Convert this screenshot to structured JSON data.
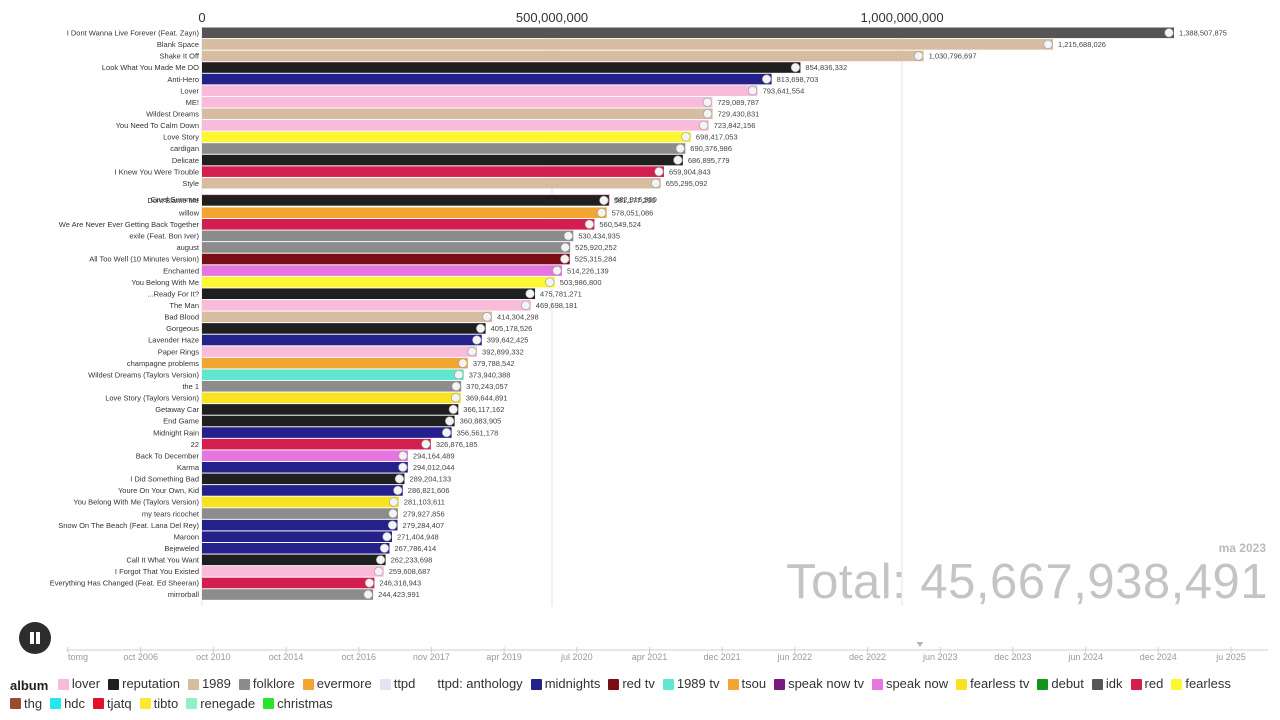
{
  "chart_data": {
    "type": "bar",
    "orientation": "horizontal",
    "xlim": [
      0,
      1388507875
    ],
    "x_ticks": [
      0,
      500000000,
      1000000000
    ],
    "x_tick_labels": [
      "0",
      "500,000,000",
      "1,000,000,000"
    ],
    "bars": [
      {
        "label": "I Dont Wanna Live Forever (Feat. Zayn)",
        "value": 1388507875,
        "value_label": "1,388,507,875",
        "album": "idk"
      },
      {
        "label": "Blank Space",
        "value": 1215688026,
        "value_label": "1,215,688,026",
        "album": "1989"
      },
      {
        "label": "Shake It Off",
        "value": 1030796697,
        "value_label": "1,030,796,697",
        "album": "1989"
      },
      {
        "label": "Look What You Made Me DO",
        "value": 854836332,
        "value_label": "854,836,332",
        "album": "reputation"
      },
      {
        "label": "Anti-Hero",
        "value": 813698703,
        "value_label": "813,698,703",
        "album": "midnights"
      },
      {
        "label": "Lover",
        "value": 793641554,
        "value_label": "793,641,554",
        "album": "lover"
      },
      {
        "label": "ME!",
        "value": 729089787,
        "value_label": "729,089,787",
        "album": "lover"
      },
      {
        "label": "Wildest Dreams",
        "value": 729430831,
        "value_label": "729,430,831",
        "album": "1989"
      },
      {
        "label": "You Need To Calm Down",
        "value": 723842156,
        "value_label": "723,842,156",
        "album": "lover"
      },
      {
        "label": "Love Story",
        "value": 698417053,
        "value_label": "698,417,053",
        "album": "fearless"
      },
      {
        "label": "cardigan",
        "value": 690376986,
        "value_label": "690,376,986",
        "album": "folklore"
      },
      {
        "label": "Delicate",
        "value": 686895779,
        "value_label": "686,895,779",
        "album": "reputation"
      },
      {
        "label": "I Knew You Were Trouble",
        "value": 659904843,
        "value_label": "659,904,843",
        "album": "red"
      },
      {
        "label": "Style",
        "value": 655295092,
        "value_label": "655,295,092",
        "album": "1989"
      },
      {
        "label": "Cruel Summer",
        "value": 582916950,
        "value_label": "582,916,950",
        "album": "lover"
      },
      {
        "label": "Dont Blame Me",
        "value": 581177290,
        "value_label": "581,177,290",
        "album": "reputation"
      },
      {
        "label": "willow",
        "value": 578051086,
        "value_label": "578,051,086",
        "album": "evermore"
      },
      {
        "label": "We Are Never Ever Getting Back Together",
        "value": 560549524,
        "value_label": "560,549,524",
        "album": "red"
      },
      {
        "label": "exile (Feat. Bon Iver)",
        "value": 530434935,
        "value_label": "530,434,935",
        "album": "folklore"
      },
      {
        "label": "august",
        "value": 525920252,
        "value_label": "525,920,252",
        "album": "folklore"
      },
      {
        "label": "All Too Well (10 Minutes Version)",
        "value": 525315284,
        "value_label": "525,315,284",
        "album": "red tv"
      },
      {
        "label": "Enchanted",
        "value": 514226139,
        "value_label": "514,226,139",
        "album": "speak now"
      },
      {
        "label": "You Belong With Me",
        "value": 503986800,
        "value_label": "503,986,800",
        "album": "fearless"
      },
      {
        "label": "...Ready For It?",
        "value": 475781271,
        "value_label": "475,781,271",
        "album": "reputation"
      },
      {
        "label": "The Man",
        "value": 469698181,
        "value_label": "469,698,181",
        "album": "lover"
      },
      {
        "label": "Bad Blood",
        "value": 414304298,
        "value_label": "414,304,298",
        "album": "1989"
      },
      {
        "label": "Gorgeous",
        "value": 405178526,
        "value_label": "405,178,526",
        "album": "reputation"
      },
      {
        "label": "Lavender Haze",
        "value": 399642425,
        "value_label": "399,642,425",
        "album": "midnights"
      },
      {
        "label": "Paper Rings",
        "value": 392899332,
        "value_label": "392,899,332",
        "album": "lover"
      },
      {
        "label": "champagne problems",
        "value": 379788542,
        "value_label": "379,788,542",
        "album": "evermore"
      },
      {
        "label": "Wildest Dreams (Taylors Version)",
        "value": 373940388,
        "value_label": "373,940,388",
        "album": "1989 tv"
      },
      {
        "label": "the 1",
        "value": 370243057,
        "value_label": "370,243,057",
        "album": "folklore"
      },
      {
        "label": "Love Story (Taylors Version)",
        "value": 369644891,
        "value_label": "369,644,891",
        "album": "fearless tv"
      },
      {
        "label": "Getaway Car",
        "value": 366117162,
        "value_label": "366,117,162",
        "album": "reputation"
      },
      {
        "label": "End Game",
        "value": 360883905,
        "value_label": "360,883,905",
        "album": "reputation"
      },
      {
        "label": "Midnight Rain",
        "value": 356561178,
        "value_label": "356,561,178",
        "album": "midnights"
      },
      {
        "label": "22",
        "value": 326876185,
        "value_label": "326,876,185",
        "album": "red"
      },
      {
        "label": "Back To December",
        "value": 294164489,
        "value_label": "294,164,489",
        "album": "speak now"
      },
      {
        "label": "Karma",
        "value": 294012044,
        "value_label": "294,012,044",
        "album": "midnights"
      },
      {
        "label": "I Did Something Bad",
        "value": 289204133,
        "value_label": "289,204,133",
        "album": "reputation"
      },
      {
        "label": "Youre On Your Own, Kid",
        "value": 286821606,
        "value_label": "286,821,606",
        "album": "midnights"
      },
      {
        "label": "You Belong With Me (Taylors Version)",
        "value": 281103611,
        "value_label": "281,103,611",
        "album": "fearless tv"
      },
      {
        "label": "my tears ricochet",
        "value": 279927856,
        "value_label": "279,927,856",
        "album": "folklore"
      },
      {
        "label": "Snow On The Beach (Feat. Lana Del Rey)",
        "value": 279284407,
        "value_label": "279,284,407",
        "album": "midnights"
      },
      {
        "label": "Maroon",
        "value": 271404948,
        "value_label": "271,404,948",
        "album": "midnights"
      },
      {
        "label": "Bejeweled",
        "value": 267786414,
        "value_label": "267,786,414",
        "album": "midnights"
      },
      {
        "label": "Call It What You Want",
        "value": 262233698,
        "value_label": "262,233,698",
        "album": "reputation"
      },
      {
        "label": "I Forgot That You Existed",
        "value": 259608687,
        "value_label": "259,608,687",
        "album": "lover"
      },
      {
        "label": "Everything Has Changed (Feat. Ed Sheeran)",
        "value": 246318943,
        "value_label": "246,318,943",
        "album": "red"
      },
      {
        "label": "mirrorball",
        "value": 244423991,
        "value_label": "244,423,991",
        "album": "folklore"
      }
    ],
    "date_label": "ma 2023",
    "total_label": "Total: 45,667,938,491",
    "timeline": {
      "labels": [
        "tomg",
        "oct 2006",
        "oct 2010",
        "oct 2014",
        "oct 2016",
        "nov 2017",
        "apr 2019",
        "jul 2020",
        "apr 2021",
        "dec 2021",
        "jun 2022",
        "dec 2022",
        "jun 2023",
        "dec 2023",
        "jun 2024",
        "dec 2024",
        "ju 2025"
      ],
      "current": "ma 2023"
    },
    "legend": {
      "title": "album",
      "items": [
        {
          "name": "lover",
          "color": "#f8bbd9"
        },
        {
          "name": "reputation",
          "color": "#1f1f1f"
        },
        {
          "name": "1989",
          "color": "#d6bda1"
        },
        {
          "name": "folklore",
          "color": "#8c8c8c"
        },
        {
          "name": "evermore",
          "color": "#f2a530"
        },
        {
          "name": "ttpd",
          "color": "#e5e3f2"
        },
        {
          "name": "ttpd: anthology",
          "color": "#ffffff"
        },
        {
          "name": "midnights",
          "color": "#24228a"
        },
        {
          "name": "red tv",
          "color": "#7a0c14"
        },
        {
          "name": "1989 tv",
          "color": "#63e6cf"
        },
        {
          "name": "tsou",
          "color": "#f2a530"
        },
        {
          "name": "speak now tv",
          "color": "#7b1a7e"
        },
        {
          "name": "speak now",
          "color": "#e576e0"
        },
        {
          "name": "fearless tv",
          "color": "#f7e321"
        },
        {
          "name": "debut",
          "color": "#13951b"
        },
        {
          "name": "idk",
          "color": "#555555"
        },
        {
          "name": "red",
          "color": "#d21f4f"
        },
        {
          "name": "fearless",
          "color": "#fdf632"
        },
        {
          "name": "thg",
          "color": "#9a4a30"
        },
        {
          "name": "hdc",
          "color": "#23e8ef"
        },
        {
          "name": "tjatq",
          "color": "#e3102c"
        },
        {
          "name": "tibto",
          "color": "#fae92e"
        },
        {
          "name": "renegade",
          "color": "#90f2c4"
        },
        {
          "name": "christmas",
          "color": "#28e52c"
        }
      ]
    }
  }
}
